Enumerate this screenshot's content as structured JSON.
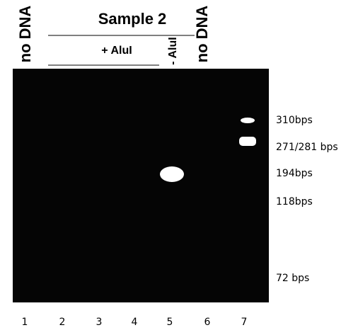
{
  "header": {
    "title": "Sample 2",
    "plus_enzyme": "+ AluI",
    "minus_enzyme": "- AluI",
    "left_control": "no DNA",
    "right_control": "no DNA"
  },
  "size_markers": [
    "310bps",
    "271/281 bps",
    "194bps",
    "118bps",
    "72 bps"
  ],
  "lane_numbers": [
    "1",
    "2",
    "3",
    "4",
    "5",
    "6",
    "7"
  ]
}
